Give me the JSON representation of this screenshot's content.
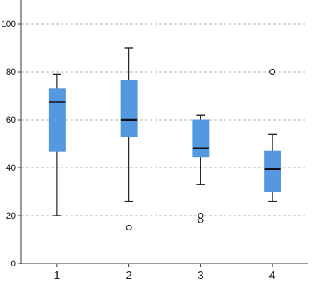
{
  "chart_data": {
    "type": "boxplot",
    "title": "",
    "xlabel": "",
    "ylabel": "",
    "ylim": [
      0,
      110
    ],
    "y_ticks": [
      0,
      20,
      40,
      60,
      80,
      100
    ],
    "grid": "horizontal-dashed",
    "categories": [
      "1",
      "2",
      "3",
      "4"
    ],
    "boxes": [
      {
        "category": "1",
        "whisker_low": 20,
        "q1": 47,
        "median": 67.5,
        "q3": 73,
        "whisker_high": 79,
        "outliers": []
      },
      {
        "category": "2",
        "whisker_low": 26,
        "q1": 53,
        "median": 60,
        "q3": 76.5,
        "whisker_high": 90,
        "outliers": [
          15
        ]
      },
      {
        "category": "3",
        "whisker_low": 33,
        "q1": 44.5,
        "median": 48,
        "q3": 60,
        "whisker_high": 62,
        "outliers": [
          20,
          18
        ]
      },
      {
        "category": "4",
        "whisker_low": 26,
        "q1": 30,
        "median": 39.5,
        "q3": 47,
        "whisker_high": 54,
        "outliers": [
          80
        ]
      }
    ],
    "colors": {
      "box_fill": "#5598e2",
      "median": "#111111",
      "whisker": "#222222",
      "grid": "#b5b5b5",
      "axis": "#333333"
    }
  }
}
